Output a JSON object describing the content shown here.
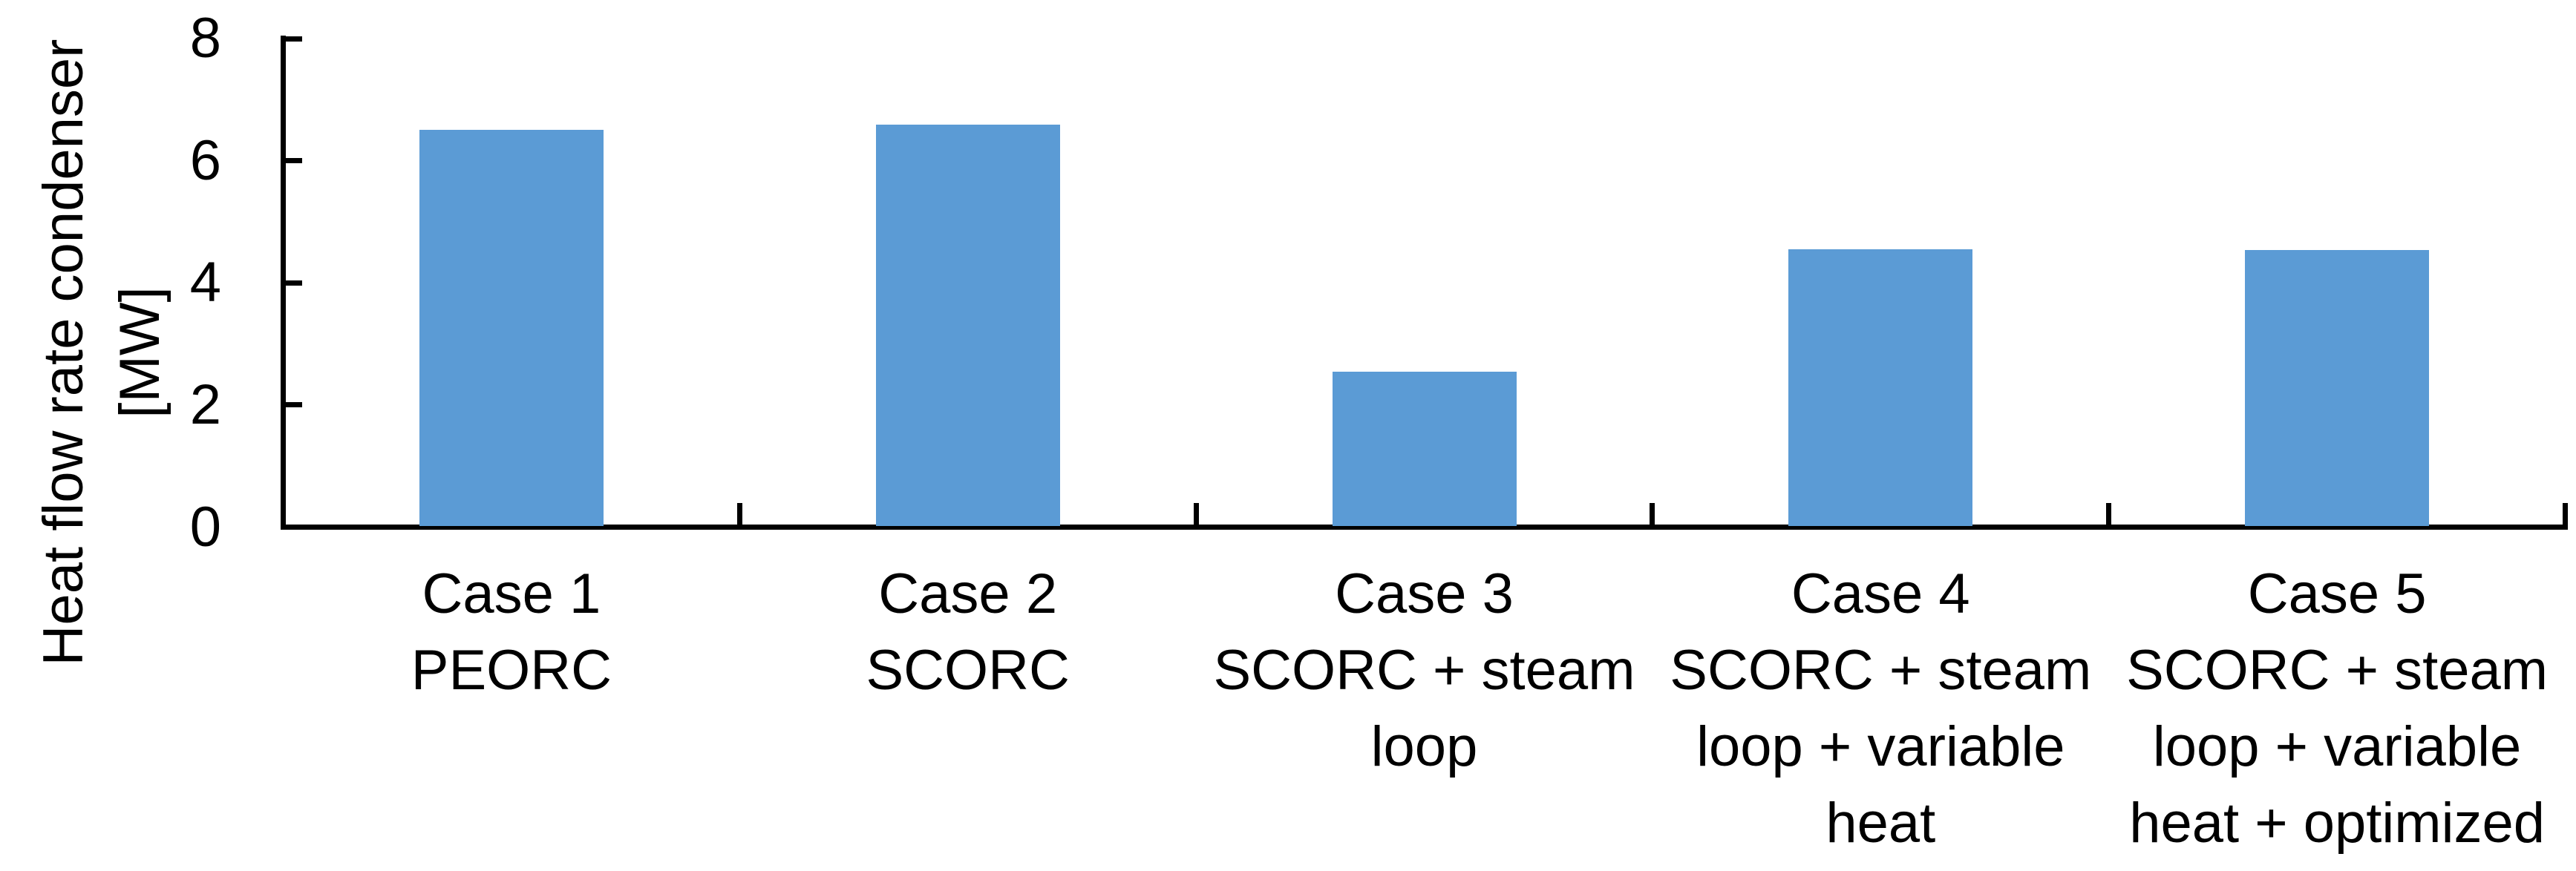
{
  "chart_data": {
    "type": "bar",
    "title": "",
    "ylabel": "Heat flow rate condenser [MW]",
    "ylabel_lines": [
      "Heat flow rate condenser",
      "[MW]"
    ],
    "xlabel": "",
    "ylim": [
      0,
      8
    ],
    "yticks": [
      0,
      2,
      4,
      6,
      8
    ],
    "grid": false,
    "legend_position": "none",
    "bar_color": "#5B9BD5",
    "axis_color": "#000000",
    "text_color": "#000000",
    "categories": [
      {
        "id": "case-1",
        "lines": [
          "Case 1",
          "PEORC"
        ]
      },
      {
        "id": "case-2",
        "lines": [
          "Case 2",
          "SCORC"
        ]
      },
      {
        "id": "case-3",
        "lines": [
          "Case 3",
          "SCORC + steam",
          "loop"
        ]
      },
      {
        "id": "case-4",
        "lines": [
          "Case 4",
          "SCORC + steam",
          "loop + variable",
          "heat"
        ]
      },
      {
        "id": "case-5",
        "lines": [
          "Case 5",
          "SCORC + steam",
          "loop + variable",
          "heat + optimized"
        ]
      }
    ],
    "values": [
      6.5,
      6.59,
      2.54,
      4.55,
      4.54
    ],
    "units": "MW"
  }
}
